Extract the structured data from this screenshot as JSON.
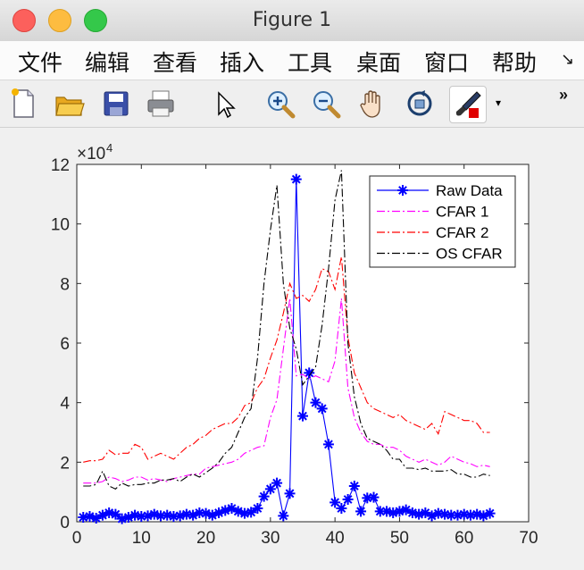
{
  "window": {
    "title": "Figure 1",
    "traffic_lights": [
      "close",
      "minimize",
      "maximize"
    ]
  },
  "menubar": {
    "items": [
      "文件",
      "编辑",
      "查看",
      "插入",
      "工具",
      "桌面",
      "窗口",
      "帮助"
    ],
    "overflow_icon": "arrow-down-right-icon"
  },
  "toolbar": {
    "buttons": [
      "new-figure-icon",
      "open-file-icon",
      "save-icon",
      "print-icon",
      "pointer-icon",
      "zoom-in-icon",
      "zoom-out-icon",
      "pan-hand-icon",
      "rotate-3d-icon",
      "brush-icon"
    ],
    "overflow_label": "»"
  },
  "chart_data": {
    "type": "line",
    "x_ticks": [
      "0",
      "10",
      "20",
      "30",
      "40",
      "50",
      "60",
      "70"
    ],
    "y_ticks": [
      "0",
      "2",
      "4",
      "6",
      "8",
      "10",
      "12"
    ],
    "y_exponent_base": "×10",
    "y_exponent_power": "4",
    "xlim": [
      0,
      70
    ],
    "ylim": [
      0,
      12
    ],
    "y_scale_factor": 10000,
    "grid": false,
    "legend_position": "top-right",
    "colors": {
      "raw": "#0000ff",
      "cfar1": "#ff00ff",
      "cfar2": "#ff0000",
      "os": "#000000"
    },
    "x": [
      1,
      2,
      3,
      4,
      5,
      6,
      7,
      8,
      9,
      10,
      11,
      12,
      13,
      14,
      15,
      16,
      17,
      18,
      19,
      20,
      21,
      22,
      23,
      24,
      25,
      26,
      27,
      28,
      29,
      30,
      31,
      32,
      33,
      34,
      35,
      36,
      37,
      38,
      39,
      40,
      41,
      42,
      43,
      44,
      45,
      46,
      47,
      48,
      49,
      50,
      51,
      52,
      53,
      54,
      55,
      56,
      57,
      58,
      59,
      60,
      61,
      62,
      63,
      64
    ],
    "series": [
      {
        "name": "Raw Data",
        "style": "solid-star",
        "values": [
          0.15,
          0.18,
          0.12,
          0.22,
          0.3,
          0.25,
          0.1,
          0.15,
          0.22,
          0.18,
          0.2,
          0.25,
          0.2,
          0.22,
          0.18,
          0.2,
          0.25,
          0.22,
          0.3,
          0.28,
          0.22,
          0.3,
          0.38,
          0.45,
          0.35,
          0.28,
          0.32,
          0.45,
          0.85,
          1.1,
          1.3,
          0.2,
          0.95,
          11.5,
          3.55,
          5.0,
          4.0,
          3.8,
          2.6,
          0.65,
          0.45,
          0.75,
          1.2,
          0.35,
          0.8,
          0.82,
          0.35,
          0.35,
          0.3,
          0.35,
          0.4,
          0.3,
          0.25,
          0.3,
          0.2,
          0.28,
          0.25,
          0.22,
          0.22,
          0.25,
          0.22,
          0.25,
          0.2,
          0.28
        ]
      },
      {
        "name": "CFAR 1",
        "style": "dashdot",
        "values": [
          1.3,
          1.3,
          1.3,
          1.35,
          1.5,
          1.45,
          1.35,
          1.4,
          1.5,
          1.5,
          1.4,
          1.45,
          1.4,
          1.35,
          1.45,
          1.5,
          1.55,
          1.6,
          1.6,
          1.8,
          1.85,
          1.9,
          1.95,
          2.0,
          2.1,
          2.3,
          2.4,
          2.5,
          2.55,
          3.5,
          4.1,
          5.8,
          7.5,
          4.9,
          4.95,
          4.8,
          4.9,
          4.8,
          4.7,
          5.4,
          7.5,
          4.5,
          3.5,
          3.0,
          2.7,
          2.6,
          2.6,
          2.5,
          2.5,
          2.4,
          2.2,
          2.1,
          2.0,
          2.1,
          2.0,
          1.9,
          2.0,
          2.2,
          2.1,
          2.0,
          1.95,
          1.85,
          1.9,
          1.85
        ]
      },
      {
        "name": "CFAR 2",
        "style": "dashdot",
        "values": [
          2.0,
          2.05,
          2.05,
          2.1,
          2.4,
          2.25,
          2.3,
          2.3,
          2.6,
          2.5,
          2.1,
          2.2,
          2.3,
          2.2,
          2.1,
          2.3,
          2.5,
          2.6,
          2.8,
          2.9,
          3.1,
          3.2,
          3.3,
          3.3,
          3.5,
          3.9,
          4.0,
          4.5,
          4.8,
          5.5,
          6.1,
          7.0,
          8.0,
          7.5,
          7.6,
          7.4,
          7.8,
          8.5,
          8.4,
          7.8,
          8.9,
          6.2,
          5.0,
          4.5,
          4.0,
          3.8,
          3.7,
          3.6,
          3.5,
          3.6,
          3.4,
          3.3,
          3.2,
          3.1,
          3.3,
          2.95,
          3.7,
          3.6,
          3.5,
          3.4,
          3.4,
          3.3,
          3.0,
          3.0
        ]
      },
      {
        "name": "OS CFAR",
        "style": "dashdot",
        "values": [
          1.2,
          1.2,
          1.25,
          1.7,
          1.2,
          1.1,
          1.3,
          1.2,
          1.25,
          1.25,
          1.3,
          1.3,
          1.4,
          1.4,
          1.45,
          1.35,
          1.5,
          1.6,
          1.5,
          1.65,
          1.8,
          2.0,
          2.3,
          2.5,
          3.0,
          3.5,
          3.8,
          5.5,
          8.0,
          9.8,
          11.3,
          8.0,
          6.5,
          5.8,
          4.6,
          4.9,
          5.2,
          6.6,
          8.5,
          10.8,
          11.8,
          6.0,
          4.2,
          3.3,
          2.8,
          2.7,
          2.6,
          2.4,
          2.1,
          2.1,
          1.8,
          1.8,
          1.75,
          1.8,
          1.7,
          1.7,
          1.7,
          1.75,
          1.6,
          1.6,
          1.5,
          1.5,
          1.6,
          1.55
        ]
      }
    ]
  }
}
